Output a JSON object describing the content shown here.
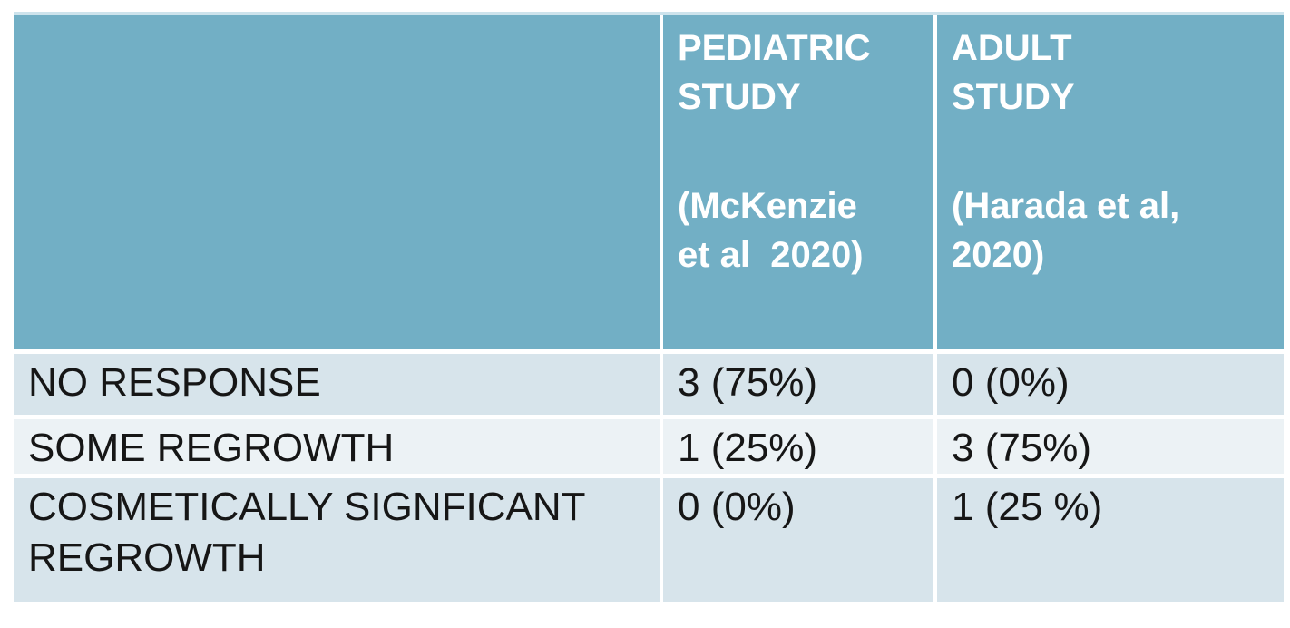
{
  "colors": {
    "header_bg": "#72AFC5",
    "header_text": "#FFFFFF",
    "row_dark_bg": "#D7E4EB",
    "row_light_bg": "#ECF2F5",
    "body_text": "#161616",
    "cell_gap": "#FFFFFF",
    "top_border": "#CDE3EC"
  },
  "table": {
    "columns": [
      {
        "title": "",
        "citation": ""
      },
      {
        "title": "PEDIATRIC\nSTUDY",
        "citation": "(McKenzie\net al  2020)"
      },
      {
        "title": "ADULT\nSTUDY",
        "citation": "(Harada et al,\n2020)"
      }
    ],
    "rows": [
      {
        "label": "NO RESPONSE",
        "pediatric": "3 (75%)",
        "adult": "0 (0%)"
      },
      {
        "label": "SOME REGROWTH",
        "pediatric": "1 (25%)",
        "adult": "3 (75%)"
      },
      {
        "label": "COSMETICALLY SIGNFICANT REGROWTH",
        "pediatric": "0 (0%)",
        "adult": "1 (25 %)"
      }
    ]
  },
  "chart_data": {
    "type": "table",
    "title": "",
    "columns": [
      "",
      "PEDIATRIC STUDY (McKenzie et al 2020)",
      "ADULT STUDY (Harada et al, 2020)"
    ],
    "rows": [
      [
        "NO RESPONSE",
        "3 (75%)",
        "0 (0%)"
      ],
      [
        "SOME REGROWTH",
        "1 (25%)",
        "3 (75%)"
      ],
      [
        "COSMETICALLY SIGNFICANT REGROWTH",
        "0 (0%)",
        "1 (25 %)"
      ]
    ],
    "series": [
      {
        "name": "PEDIATRIC STUDY (McKenzie et al 2020)",
        "counts": [
          3,
          1,
          0
        ],
        "percents": [
          75,
          25,
          0
        ]
      },
      {
        "name": "ADULT STUDY (Harada et al, 2020)",
        "counts": [
          0,
          3,
          1
        ],
        "percents": [
          0,
          75,
          25
        ]
      }
    ],
    "categories": [
      "NO RESPONSE",
      "SOME REGROWTH",
      "COSMETICALLY SIGNFICANT REGROWTH"
    ]
  }
}
